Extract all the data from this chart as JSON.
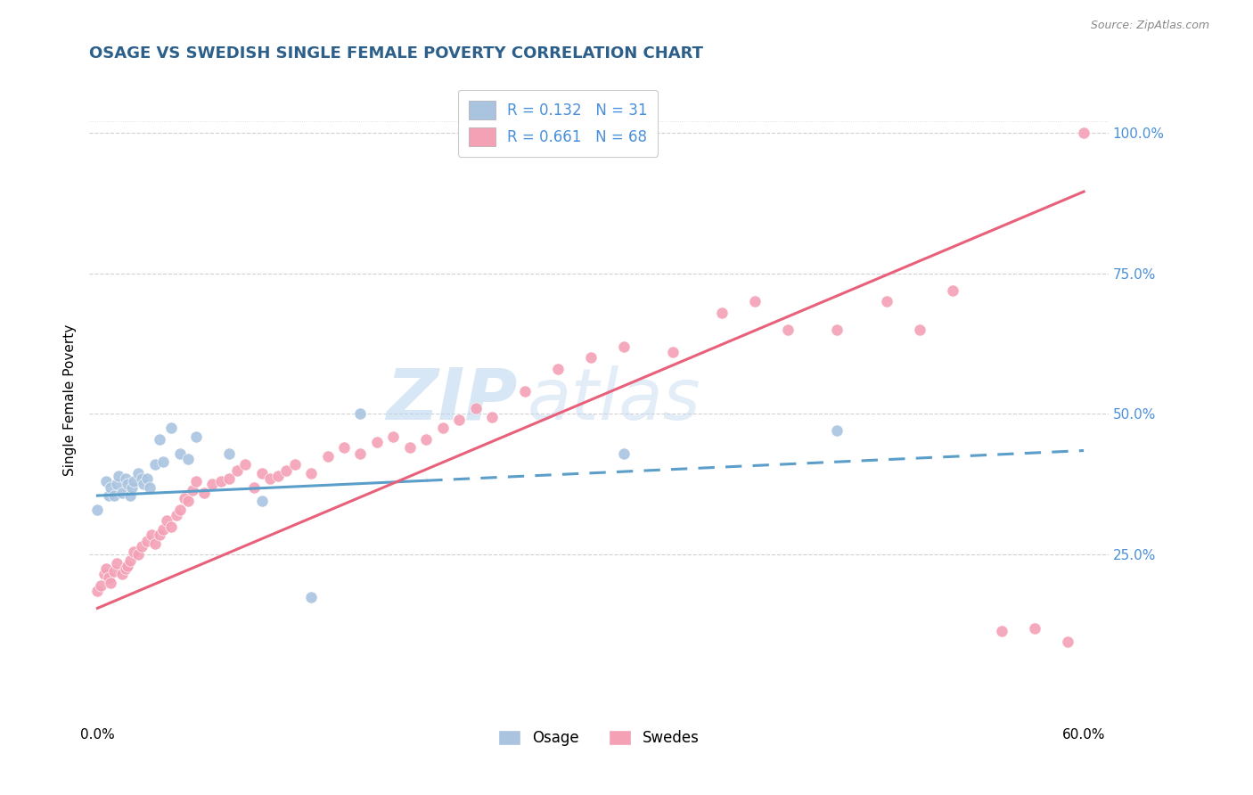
{
  "title": "OSAGE VS SWEDISH SINGLE FEMALE POVERTY CORRELATION CHART",
  "source": "Source: ZipAtlas.com",
  "ylabel": "Single Female Poverty",
  "watermark": "ZIPatlas",
  "xlim": [
    -0.005,
    0.615
  ],
  "ylim": [
    -0.05,
    1.1
  ],
  "x_ticks": [
    0.0,
    0.6
  ],
  "x_tick_labels": [
    "0.0%",
    "60.0%"
  ],
  "y_ticks": [
    0.25,
    0.5,
    0.75,
    1.0
  ],
  "y_tick_labels": [
    "25.0%",
    "50.0%",
    "75.0%",
    "100.0%"
  ],
  "osage_color": "#aac4e0",
  "swedes_color": "#f4a0b5",
  "osage_line_color": "#5b9ec9",
  "swedes_line_color": "#e8607a",
  "legend_r1": "R = 0.132",
  "legend_n1": "N = 31",
  "legend_r2": "R = 0.661",
  "legend_n2": "N = 68",
  "legend_label1": "Osage",
  "legend_label2": "Swedes",
  "title_color": "#2c5f8a",
  "label_color": "#4a90d9",
  "grid_color": "#cccccc",
  "osage_x": [
    0.0,
    0.005,
    0.007,
    0.008,
    0.01,
    0.012,
    0.013,
    0.015,
    0.017,
    0.018,
    0.02,
    0.021,
    0.022,
    0.025,
    0.027,
    0.028,
    0.03,
    0.032,
    0.035,
    0.038,
    0.04,
    0.045,
    0.05,
    0.055,
    0.06,
    0.08,
    0.1,
    0.13,
    0.16,
    0.32,
    0.45
  ],
  "osage_y": [
    0.33,
    0.38,
    0.355,
    0.37,
    0.355,
    0.375,
    0.39,
    0.36,
    0.385,
    0.375,
    0.355,
    0.37,
    0.38,
    0.395,
    0.385,
    0.375,
    0.385,
    0.37,
    0.41,
    0.455,
    0.415,
    0.475,
    0.43,
    0.42,
    0.46,
    0.43,
    0.345,
    0.175,
    0.5,
    0.43,
    0.47
  ],
  "swedes_x": [
    0.0,
    0.002,
    0.004,
    0.005,
    0.007,
    0.008,
    0.01,
    0.012,
    0.015,
    0.017,
    0.018,
    0.02,
    0.022,
    0.025,
    0.027,
    0.03,
    0.033,
    0.035,
    0.038,
    0.04,
    0.042,
    0.045,
    0.048,
    0.05,
    0.053,
    0.055,
    0.058,
    0.06,
    0.065,
    0.07,
    0.075,
    0.08,
    0.085,
    0.09,
    0.095,
    0.1,
    0.105,
    0.11,
    0.115,
    0.12,
    0.13,
    0.14,
    0.15,
    0.16,
    0.17,
    0.18,
    0.19,
    0.2,
    0.21,
    0.22,
    0.23,
    0.24,
    0.26,
    0.28,
    0.3,
    0.32,
    0.35,
    0.38,
    0.4,
    0.42,
    0.45,
    0.48,
    0.5,
    0.52,
    0.55,
    0.57,
    0.59,
    0.6
  ],
  "swedes_y": [
    0.185,
    0.195,
    0.215,
    0.225,
    0.21,
    0.2,
    0.22,
    0.235,
    0.215,
    0.225,
    0.23,
    0.24,
    0.255,
    0.25,
    0.265,
    0.275,
    0.285,
    0.27,
    0.285,
    0.295,
    0.31,
    0.3,
    0.32,
    0.33,
    0.35,
    0.345,
    0.365,
    0.38,
    0.36,
    0.375,
    0.38,
    0.385,
    0.4,
    0.41,
    0.37,
    0.395,
    0.385,
    0.39,
    0.4,
    0.41,
    0.395,
    0.425,
    0.44,
    0.43,
    0.45,
    0.46,
    0.44,
    0.455,
    0.475,
    0.49,
    0.51,
    0.495,
    0.54,
    0.58,
    0.6,
    0.62,
    0.61,
    0.68,
    0.7,
    0.65,
    0.65,
    0.7,
    0.65,
    0.72,
    0.115,
    0.12,
    0.095,
    1.0
  ],
  "osage_trend_x0": 0.0,
  "osage_trend_x1": 0.6,
  "osage_trend_y0": 0.355,
  "osage_trend_y1": 0.435,
  "swedes_trend_x0": 0.0,
  "swedes_trend_x1": 0.6,
  "swedes_trend_y0": 0.155,
  "swedes_trend_y1": 0.895
}
